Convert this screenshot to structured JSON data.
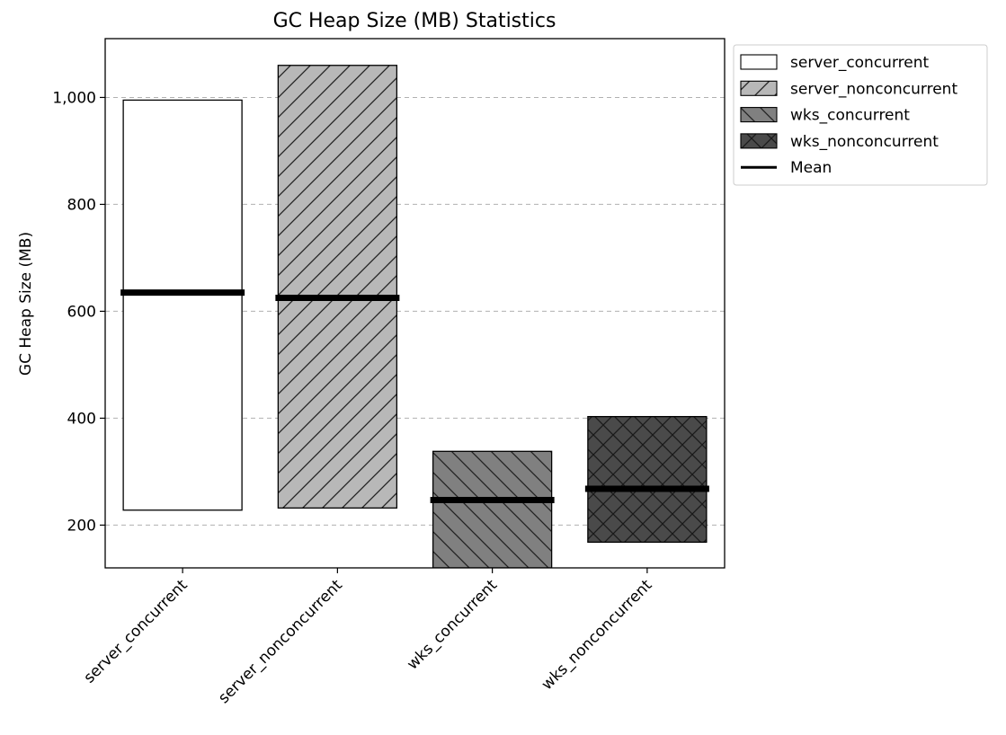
{
  "chart_data": {
    "type": "bar",
    "title": "GC Heap Size (MB) Statistics",
    "ylabel": "GC Heap Size (MB)",
    "xlabel": "",
    "ylim": [
      120,
      1110
    ],
    "yticks": [
      200,
      400,
      600,
      800,
      1000
    ],
    "ytick_labels": [
      "200",
      "400",
      "600",
      "800",
      "1,000"
    ],
    "grid": "y-dashed",
    "legend_position": "outside-top-right",
    "categories": [
      "server_concurrent",
      "server_nonconcurrent",
      "wks_concurrent",
      "wks_nonconcurrent"
    ],
    "series": [
      {
        "name": "server_concurrent",
        "min": 228,
        "max": 995,
        "mean": 635,
        "color": "#ffffff",
        "hatch": "none"
      },
      {
        "name": "server_nonconcurrent",
        "min": 232,
        "max": 1060,
        "mean": 625,
        "color": "#b8b8b8",
        "hatch": "forward-diagonal"
      },
      {
        "name": "wks_concurrent",
        "min": 120,
        "max": 338,
        "mean": 247,
        "color": "#808080",
        "hatch": "back-diagonal"
      },
      {
        "name": "wks_nonconcurrent",
        "min": 168,
        "max": 403,
        "mean": 268,
        "color": "#4a4a4a",
        "hatch": "cross"
      }
    ],
    "mean_label": "Mean",
    "mean_color": "#000000"
  }
}
